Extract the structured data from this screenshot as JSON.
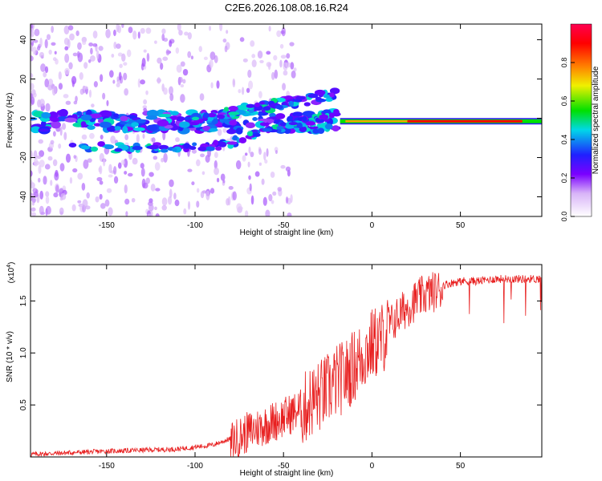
{
  "title": "C2E6.2026.108.08.16.R24",
  "chart_data": [
    {
      "type": "heatmap",
      "xlabel": "Height of straight line (km)",
      "ylabel": "Frequency (Hz)",
      "xlim": [
        -193,
        96
      ],
      "ylim": [
        -50,
        48
      ],
      "xticks": [
        -150,
        -100,
        -50,
        0,
        50
      ],
      "xtick_labels": [
        "-150",
        "-100",
        "-50",
        "0",
        "50"
      ],
      "yticks": [
        40,
        20,
        0,
        -20,
        -40
      ],
      "ytick_labels": [
        "40",
        "20",
        "0",
        "-20",
        "-40"
      ],
      "colorbar": {
        "label": "Normalized spectral amplitude",
        "range": [
          0,
          1
        ],
        "ticks": [
          0.0,
          0.2,
          0.4,
          0.6,
          0.8
        ],
        "tick_labels": [
          "0.0",
          "0.2",
          "0.4",
          "0.6",
          "0.8"
        ],
        "colors": [
          "#ffffff",
          "#d8b4f8",
          "#7a00ff",
          "#2020ff",
          "#00d8e8",
          "#00e000",
          "#f0f000",
          "#ff8000",
          "#ff0000",
          "#ff0050"
        ]
      },
      "features": [
        {
          "name": "carrier line",
          "x_range": [
            -18,
            96
          ],
          "frequency": -1.5,
          "amplitude": 0.9
        },
        {
          "name": "central band",
          "x_range": [
            -193,
            -20
          ],
          "frequency": -2,
          "amplitude": 0.3
        },
        {
          "name": "upper branch",
          "x_range": [
            -100,
            -20
          ],
          "frequency_range": [
            0,
            12
          ],
          "amplitude": 0.35
        },
        {
          "name": "lower branch",
          "x_range": [
            -170,
            -20
          ],
          "frequency_range": [
            -15,
            5
          ],
          "amplitude": 0.3
        }
      ]
    },
    {
      "type": "line",
      "xlabel": "Height of straight line (km)",
      "ylabel": "SNR (10 * v/v)",
      "y_multiplier": "(x10",
      "y_multiplier_exp": "4",
      "y_multiplier_close": ")",
      "xlim": [
        -193,
        96
      ],
      "ylim": [
        0,
        1.85
      ],
      "xticks": [
        -150,
        -100,
        -50,
        0,
        50
      ],
      "xtick_labels": [
        "-150",
        "-100",
        "-50",
        "0",
        "50"
      ],
      "yticks": [
        0.5,
        1.0,
        1.5
      ],
      "ytick_labels": [
        "0.5",
        "1.0",
        "1.5"
      ],
      "series": [
        {
          "color": "#e82020",
          "x": [
            -193,
            -150,
            -110,
            -100,
            -90,
            -80,
            -70,
            -60,
            -50,
            -40,
            -35,
            -30,
            -25,
            -20,
            -15,
            -10,
            -5,
            0,
            5,
            10,
            15,
            20,
            25,
            30,
            40,
            50,
            60,
            70,
            80,
            90,
            96
          ],
          "y": [
            0.03,
            0.06,
            0.08,
            0.1,
            0.12,
            0.18,
            0.28,
            0.35,
            0.42,
            0.5,
            0.6,
            0.65,
            0.72,
            0.8,
            0.85,
            0.95,
            1.05,
            1.15,
            1.2,
            1.3,
            1.4,
            1.48,
            1.55,
            1.6,
            1.66,
            1.7,
            1.7,
            1.72,
            1.72,
            1.72,
            1.72
          ]
        }
      ]
    }
  ]
}
